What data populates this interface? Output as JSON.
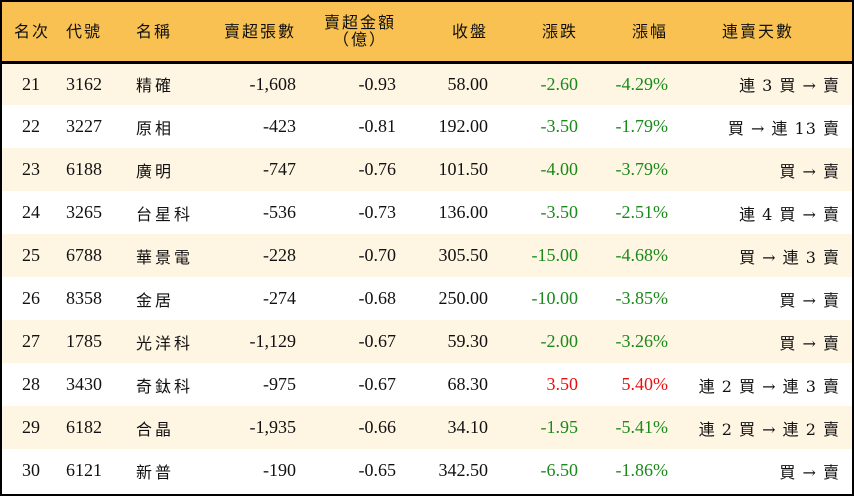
{
  "table": {
    "headers": {
      "rank": "名次",
      "code": "代號",
      "name": "名稱",
      "net_sell_volume": "賣超張數",
      "net_sell_amount_line1": "賣超金額",
      "net_sell_amount_line2": "（億）",
      "close": "收盤",
      "change": "漲跌",
      "change_pct": "漲幅",
      "consecutive_days": "連賣天數"
    },
    "colors": {
      "header_bg": "#f9c152",
      "row_odd_bg": "#fff5e3",
      "row_even_bg": "#ffffff",
      "down": "#1a8a1a",
      "up": "#e81010"
    },
    "rows": [
      {
        "rank": "21",
        "code": "3162",
        "name": "精確",
        "volume": "-1,608",
        "amount": "-0.93",
        "close": "58.00",
        "change": "-2.60",
        "pct": "-4.29%",
        "trend": "down",
        "days": "連 3 買 → 賣"
      },
      {
        "rank": "22",
        "code": "3227",
        "name": "原相",
        "volume": "-423",
        "amount": "-0.81",
        "close": "192.00",
        "change": "-3.50",
        "pct": "-1.79%",
        "trend": "down",
        "days": "買 → 連 13 賣"
      },
      {
        "rank": "23",
        "code": "6188",
        "name": "廣明",
        "volume": "-747",
        "amount": "-0.76",
        "close": "101.50",
        "change": "-4.00",
        "pct": "-3.79%",
        "trend": "down",
        "days": "買 → 賣"
      },
      {
        "rank": "24",
        "code": "3265",
        "name": "台星科",
        "volume": "-536",
        "amount": "-0.73",
        "close": "136.00",
        "change": "-3.50",
        "pct": "-2.51%",
        "trend": "down",
        "days": "連 4 買 → 賣"
      },
      {
        "rank": "25",
        "code": "6788",
        "name": "華景電",
        "volume": "-228",
        "amount": "-0.70",
        "close": "305.50",
        "change": "-15.00",
        "pct": "-4.68%",
        "trend": "down",
        "days": "買 → 連 3 賣"
      },
      {
        "rank": "26",
        "code": "8358",
        "name": "金居",
        "volume": "-274",
        "amount": "-0.68",
        "close": "250.00",
        "change": "-10.00",
        "pct": "-3.85%",
        "trend": "down",
        "days": "買 → 賣"
      },
      {
        "rank": "27",
        "code": "1785",
        "name": "光洋科",
        "volume": "-1,129",
        "amount": "-0.67",
        "close": "59.30",
        "change": "-2.00",
        "pct": "-3.26%",
        "trend": "down",
        "days": "買 → 賣"
      },
      {
        "rank": "28",
        "code": "3430",
        "name": "奇鈦科",
        "volume": "-975",
        "amount": "-0.67",
        "close": "68.30",
        "change": "3.50",
        "pct": "5.40%",
        "trend": "up",
        "days": "連 2 買 → 連 3 賣"
      },
      {
        "rank": "29",
        "code": "6182",
        "name": "合晶",
        "volume": "-1,935",
        "amount": "-0.66",
        "close": "34.10",
        "change": "-1.95",
        "pct": "-5.41%",
        "trend": "down",
        "days": "連 2 買 → 連 2 賣"
      },
      {
        "rank": "30",
        "code": "6121",
        "name": "新普",
        "volume": "-190",
        "amount": "-0.65",
        "close": "342.50",
        "change": "-6.50",
        "pct": "-1.86%",
        "trend": "down",
        "days": "買 → 賣"
      }
    ]
  }
}
